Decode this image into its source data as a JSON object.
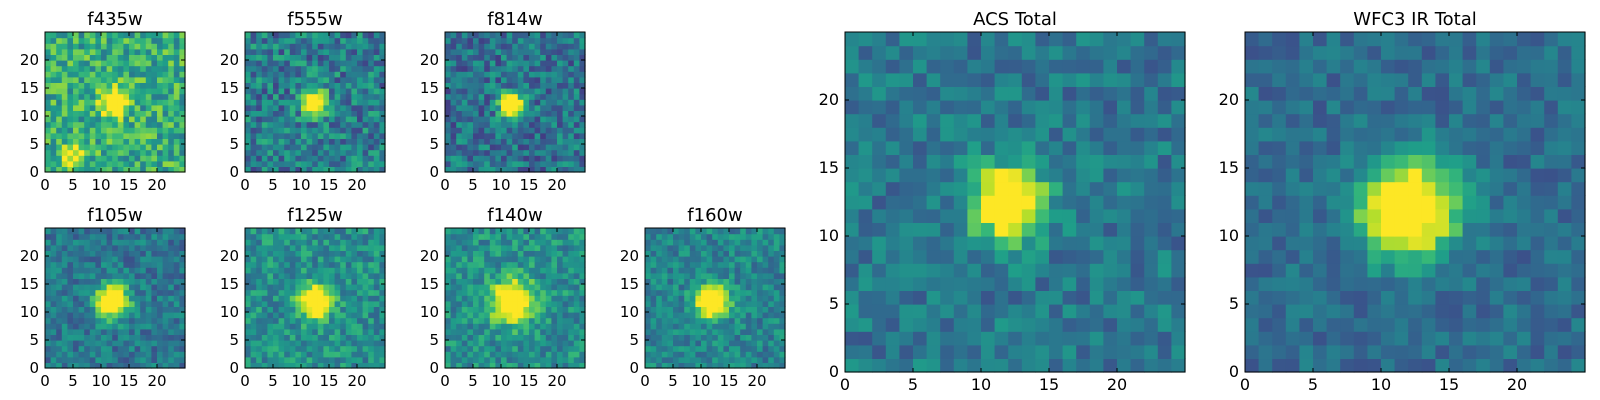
{
  "figure": {
    "description": "Postage-stamp images of a galaxy in HST filters",
    "colormap": "viridis",
    "colormap_stops": [
      "#440154",
      "#482878",
      "#3e4989",
      "#31688e",
      "#26828e",
      "#1f9e89",
      "#35b779",
      "#6ece58",
      "#b5de2b",
      "#fde725"
    ]
  },
  "chart_data": [
    {
      "type": "heatmap",
      "title": "f435w",
      "xlim": [
        0,
        25
      ],
      "ylim": [
        0,
        25
      ],
      "xticks": [
        0,
        5,
        10,
        15,
        20
      ],
      "yticks": [
        0,
        5,
        10,
        15,
        20
      ],
      "grid": false,
      "source": {
        "center": [
          12.5,
          12.5
        ],
        "sigma": 1.6,
        "peak": 0.9
      },
      "background": 0.62,
      "noise": 0.22,
      "extra_sources": [
        {
          "center": [
            5,
            3
          ],
          "sigma": 1.6,
          "peak": 0.35
        }
      ]
    },
    {
      "type": "heatmap",
      "title": "f555w",
      "xlim": [
        0,
        25
      ],
      "ylim": [
        0,
        25
      ],
      "xticks": [
        0,
        5,
        10,
        15,
        20
      ],
      "yticks": [
        0,
        5,
        10,
        15,
        20
      ],
      "grid": false,
      "source": {
        "center": [
          12.5,
          12.5
        ],
        "sigma": 1.5,
        "peak": 0.95
      },
      "background": 0.42,
      "noise": 0.22
    },
    {
      "type": "heatmap",
      "title": "f814w",
      "xlim": [
        0,
        25
      ],
      "ylim": [
        0,
        25
      ],
      "xticks": [
        0,
        5,
        10,
        15,
        20
      ],
      "yticks": [
        0,
        5,
        10,
        15,
        20
      ],
      "grid": false,
      "source": {
        "center": [
          12,
          12
        ],
        "sigma": 1.5,
        "peak": 1.0
      },
      "background": 0.38,
      "noise": 0.2
    },
    {
      "type": "heatmap",
      "title": "f105w",
      "xlim": [
        0,
        25
      ],
      "ylim": [
        0,
        25
      ],
      "xticks": [
        0,
        5,
        10,
        15,
        20
      ],
      "yticks": [
        0,
        5,
        10,
        15,
        20
      ],
      "grid": false,
      "source": {
        "center": [
          12,
          12
        ],
        "sigma": 2.0,
        "peak": 1.0
      },
      "background": 0.4,
      "noise": 0.15
    },
    {
      "type": "heatmap",
      "title": "f125w",
      "xlim": [
        0,
        25
      ],
      "ylim": [
        0,
        25
      ],
      "xticks": [
        0,
        5,
        10,
        15,
        20
      ],
      "yticks": [
        0,
        5,
        10,
        15,
        20
      ],
      "grid": false,
      "source": {
        "center": [
          12.5,
          12
        ],
        "sigma": 2.0,
        "peak": 0.85
      },
      "background": 0.5,
      "noise": 0.17
    },
    {
      "type": "heatmap",
      "title": "f140w",
      "xlim": [
        0,
        25
      ],
      "ylim": [
        0,
        25
      ],
      "xticks": [
        0,
        5,
        10,
        15,
        20
      ],
      "yticks": [
        0,
        5,
        10,
        15,
        20
      ],
      "grid": false,
      "source": {
        "center": [
          12,
          12
        ],
        "sigma": 2.6,
        "peak": 0.8
      },
      "background": 0.5,
      "noise": 0.17
    },
    {
      "type": "heatmap",
      "title": "f160w",
      "xlim": [
        0,
        25
      ],
      "ylim": [
        0,
        25
      ],
      "xticks": [
        0,
        5,
        10,
        15,
        20
      ],
      "yticks": [
        0,
        5,
        10,
        15,
        20
      ],
      "grid": false,
      "source": {
        "center": [
          12,
          12
        ],
        "sigma": 2.0,
        "peak": 0.95
      },
      "background": 0.45,
      "noise": 0.15
    },
    {
      "type": "heatmap",
      "title": "ACS Total",
      "xlim": [
        0,
        25
      ],
      "ylim": [
        0,
        25
      ],
      "xticks": [
        0,
        5,
        10,
        15,
        20
      ],
      "yticks": [
        0,
        5,
        10,
        15,
        20
      ],
      "grid": false,
      "source": {
        "center": [
          12,
          12.5
        ],
        "sigma": 1.8,
        "peak": 1.0
      },
      "background": 0.4,
      "noise": 0.14
    },
    {
      "type": "heatmap",
      "title": "WFC3 IR Total",
      "xlim": [
        0,
        25
      ],
      "ylim": [
        0,
        25
      ],
      "xticks": [
        0,
        5,
        10,
        15,
        20
      ],
      "yticks": [
        0,
        5,
        10,
        15,
        20
      ],
      "grid": false,
      "source": {
        "center": [
          12,
          12
        ],
        "sigma": 2.4,
        "peak": 1.0
      },
      "background": 0.36,
      "noise": 0.11
    }
  ]
}
